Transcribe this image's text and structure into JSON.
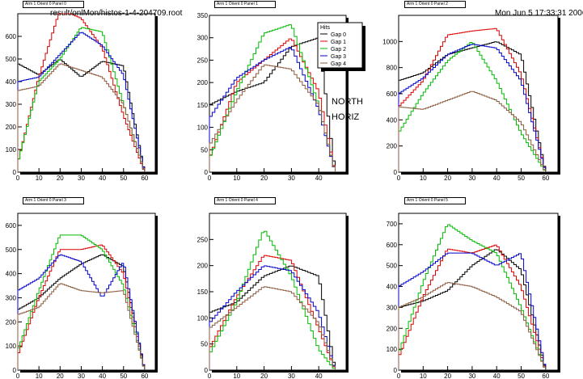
{
  "header": {
    "file_path": "result/onlMon/histos-1-4-204709.root",
    "timestamp": "Mon Jun  5 17:33:31 2006"
  },
  "annotation": {
    "line1": "NORTH",
    "line2": "HORIZ"
  },
  "legend": {
    "title": "Hits",
    "entries": [
      {
        "label": "Gap 0",
        "color": "#000000"
      },
      {
        "label": "Gap 1",
        "color": "#dd0000"
      },
      {
        "label": "Gap 2",
        "color": "#00bb00"
      },
      {
        "label": "Gap 3",
        "color": "#0000cc"
      },
      {
        "label": "Gap 4",
        "color": "#8b5a3c"
      }
    ]
  },
  "chart_data": [
    {
      "type": "line",
      "title": "Arm 1 Orient 0 Panel 0",
      "x": [
        0,
        10,
        20,
        30,
        40,
        50,
        60
      ],
      "xlim": [
        0,
        65
      ],
      "ylim": [
        0,
        700
      ],
      "xticks": [
        0,
        10,
        20,
        30,
        40,
        50,
        60
      ],
      "yticks": [
        0,
        100,
        200,
        300,
        400,
        500,
        600
      ],
      "series": [
        {
          "name": "Gap 0",
          "values": [
            480,
            430,
            500,
            420,
            490,
            470,
            0
          ]
        },
        {
          "name": "Gap 1",
          "values": [
            40,
            420,
            720,
            680,
            550,
            250,
            0
          ]
        },
        {
          "name": "Gap 2",
          "values": [
            40,
            400,
            500,
            640,
            620,
            300,
            0
          ]
        },
        {
          "name": "Gap 3",
          "values": [
            400,
            420,
            520,
            620,
            560,
            430,
            0
          ]
        },
        {
          "name": "Gap 4",
          "values": [
            360,
            380,
            480,
            450,
            420,
            300,
            0
          ]
        }
      ]
    },
    {
      "type": "line",
      "title": "Arm 1 Orient 0 Panel 1",
      "x": [
        0,
        10,
        20,
        30,
        40,
        46
      ],
      "xlim": [
        0,
        50
      ],
      "ylim": [
        0,
        350
      ],
      "xticks": [
        0,
        10,
        20,
        30,
        40
      ],
      "yticks": [
        0,
        50,
        100,
        150,
        200,
        250,
        300,
        350
      ],
      "series": [
        {
          "name": "Gap 0",
          "values": [
            150,
            180,
            200,
            280,
            300,
            0
          ]
        },
        {
          "name": "Gap 1",
          "values": [
            30,
            200,
            250,
            300,
            180,
            0
          ]
        },
        {
          "name": "Gap 2",
          "values": [
            30,
            180,
            310,
            330,
            150,
            0
          ]
        },
        {
          "name": "Gap 3",
          "values": [
            120,
            210,
            250,
            280,
            140,
            0
          ]
        },
        {
          "name": "Gap 4",
          "values": [
            60,
            160,
            240,
            230,
            150,
            0
          ]
        }
      ]
    },
    {
      "type": "line",
      "title": "Arm 1 Orient 0 Panel 2",
      "x": [
        0,
        10,
        20,
        30,
        40,
        50,
        60
      ],
      "xlim": [
        0,
        65
      ],
      "ylim": [
        0,
        1200
      ],
      "xticks": [
        0,
        10,
        20,
        30,
        40,
        50,
        60
      ],
      "yticks": [
        0,
        200,
        400,
        600,
        800,
        1000
      ],
      "series": [
        {
          "name": "Gap 0",
          "values": [
            700,
            760,
            900,
            950,
            1000,
            900,
            0
          ]
        },
        {
          "name": "Gap 1",
          "values": [
            500,
            700,
            1050,
            1080,
            1100,
            750,
            0
          ]
        },
        {
          "name": "Gap 2",
          "values": [
            300,
            600,
            850,
            1000,
            700,
            300,
            0
          ]
        },
        {
          "name": "Gap 3",
          "values": [
            600,
            720,
            900,
            980,
            950,
            700,
            0
          ]
        },
        {
          "name": "Gap 4",
          "values": [
            500,
            480,
            550,
            620,
            550,
            380,
            0
          ]
        }
      ]
    },
    {
      "type": "line",
      "title": "Arm 1 Orient 0 Panel 3",
      "x": [
        0,
        10,
        20,
        30,
        40,
        50,
        60
      ],
      "xlim": [
        0,
        65
      ],
      "ylim": [
        0,
        650
      ],
      "xticks": [
        0,
        10,
        20,
        30,
        40,
        50,
        60
      ],
      "yticks": [
        0,
        100,
        200,
        300,
        400,
        500,
        600
      ],
      "series": [
        {
          "name": "Gap 0",
          "values": [
            250,
            300,
            380,
            440,
            480,
            430,
            0
          ]
        },
        {
          "name": "Gap 1",
          "values": [
            60,
            300,
            500,
            500,
            520,
            400,
            0
          ]
        },
        {
          "name": "Gap 2",
          "values": [
            80,
            330,
            560,
            560,
            500,
            350,
            0
          ]
        },
        {
          "name": "Gap 3",
          "values": [
            330,
            380,
            480,
            450,
            300,
            450,
            0
          ]
        },
        {
          "name": "Gap 4",
          "values": [
            230,
            260,
            360,
            330,
            320,
            330,
            0
          ]
        }
      ]
    },
    {
      "type": "line",
      "title": "Arm 1 Orient 0 Panel 4",
      "x": [
        0,
        10,
        20,
        30,
        40,
        46
      ],
      "xlim": [
        0,
        50
      ],
      "ylim": [
        0,
        300
      ],
      "xticks": [
        0,
        10,
        20,
        30,
        40
      ],
      "yticks": [
        0,
        50,
        100,
        150,
        200,
        250
      ],
      "series": [
        {
          "name": "Gap 0",
          "values": [
            110,
            130,
            180,
            200,
            180,
            0
          ]
        },
        {
          "name": "Gap 1",
          "values": [
            40,
            140,
            220,
            210,
            80,
            0
          ]
        },
        {
          "name": "Gap 2",
          "values": [
            30,
            130,
            270,
            180,
            40,
            0
          ]
        },
        {
          "name": "Gap 3",
          "values": [
            90,
            150,
            200,
            190,
            110,
            0
          ]
        },
        {
          "name": "Gap 4",
          "values": [
            80,
            120,
            160,
            150,
            90,
            0
          ]
        }
      ]
    },
    {
      "type": "line",
      "title": "Arm 1 Orient 0 Panel 5",
      "x": [
        0,
        10,
        20,
        30,
        40,
        50,
        60
      ],
      "xlim": [
        0,
        65
      ],
      "ylim": [
        0,
        750
      ],
      "xticks": [
        0,
        10,
        20,
        30,
        40,
        50,
        60
      ],
      "yticks": [
        0,
        100,
        200,
        300,
        400,
        500,
        600,
        700
      ],
      "series": [
        {
          "name": "Gap 0",
          "values": [
            300,
            330,
            380,
            500,
            580,
            480,
            0
          ]
        },
        {
          "name": "Gap 1",
          "values": [
            60,
            350,
            580,
            560,
            600,
            400,
            0
          ]
        },
        {
          "name": "Gap 2",
          "values": [
            80,
            420,
            700,
            620,
            560,
            300,
            0
          ]
        },
        {
          "name": "Gap 3",
          "values": [
            400,
            470,
            560,
            560,
            500,
            560,
            0
          ]
        },
        {
          "name": "Gap 4",
          "values": [
            300,
            350,
            420,
            400,
            350,
            280,
            0
          ]
        }
      ]
    }
  ]
}
